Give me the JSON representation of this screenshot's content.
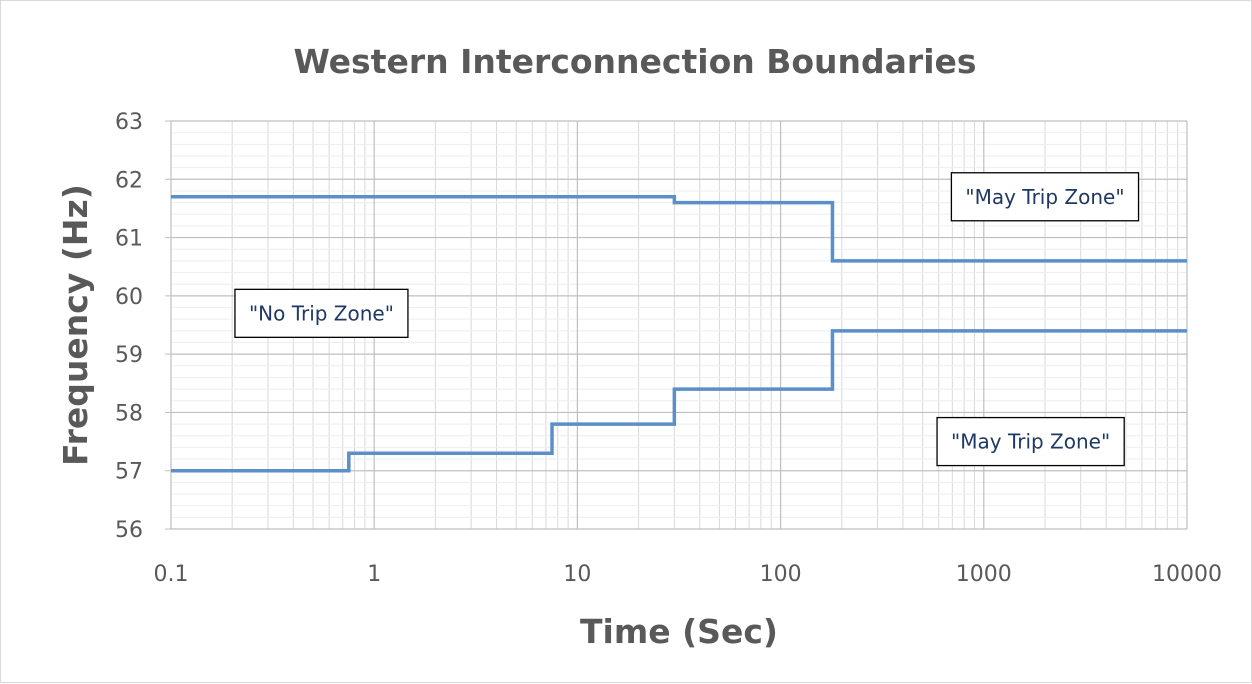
{
  "chart_data": {
    "type": "line",
    "title": "Western Interconnection Boundaries",
    "xlabel": "Time (Sec)",
    "ylabel": "Frequency (Hz)",
    "x_scale": "log",
    "xlim": [
      0.1,
      10000
    ],
    "ylim": [
      56,
      63
    ],
    "x_ticks": [
      0.1,
      1,
      10,
      100,
      1000,
      10000
    ],
    "x_tick_labels": [
      "0.1",
      "1",
      "10",
      "100",
      "1000",
      "10000"
    ],
    "y_ticks": [
      56,
      57,
      58,
      59,
      60,
      61,
      62,
      63
    ],
    "y_tick_labels": [
      "56",
      "57",
      "58",
      "59",
      "60",
      "61",
      "62",
      "63"
    ],
    "grid": true,
    "legend": "none",
    "series": [
      {
        "color": "#5b8fc9",
        "step": true,
        "points": [
          [
            0.1,
            61.7
          ],
          [
            30,
            61.7
          ],
          [
            30,
            61.6
          ],
          [
            180,
            61.6
          ],
          [
            180,
            60.6
          ],
          [
            10000,
            60.6
          ]
        ]
      },
      {
        "color": "#5b8fc9",
        "step": true,
        "points": [
          [
            0.1,
            57.0
          ],
          [
            0.75,
            57.0
          ],
          [
            0.75,
            57.3
          ],
          [
            7.5,
            57.3
          ],
          [
            7.5,
            57.8
          ],
          [
            30,
            57.8
          ],
          [
            30,
            58.4
          ],
          [
            180,
            58.4
          ],
          [
            180,
            59.4
          ],
          [
            10000,
            59.4
          ]
        ]
      }
    ],
    "annotations": [
      {
        "text": "\"May Trip Zone\"",
        "x": 2000,
        "y": 61.7
      },
      {
        "text": "\"No Trip Zone\"",
        "x": 0.55,
        "y": 59.7
      },
      {
        "text": "\"May Trip Zone\"",
        "x": 1700,
        "y": 57.5
      }
    ]
  }
}
